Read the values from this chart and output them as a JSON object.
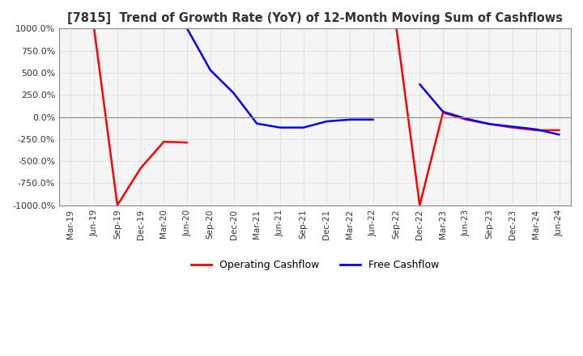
{
  "title": "[7815]  Trend of Growth Rate (YoY) of 12-Month Moving Sum of Cashflows",
  "ylim": [
    -1000,
    1000
  ],
  "yticks": [
    -1000,
    -750,
    -500,
    -250,
    0,
    250,
    500,
    750,
    1000
  ],
  "ytick_labels": [
    "-1000.0%",
    "-750.0%",
    "-500.0%",
    "-250.0%",
    "0.0%",
    "250.0%",
    "500.0%",
    "750.0%",
    "1000.0%"
  ],
  "background_color": "#ffffff",
  "plot_bg_color": "#f5f5f5",
  "grid_color": "#aaaaaa",
  "operating_color": "#ff0000",
  "free_color": "#0000ff",
  "x_labels": [
    "Mar-19",
    "Jun-19",
    "Sep-19",
    "Dec-19",
    "Mar-20",
    "Jun-20",
    "Sep-20",
    "Dec-20",
    "Mar-21",
    "Jun-21",
    "Sep-21",
    "Dec-21",
    "Mar-22",
    "Jun-22",
    "Sep-22",
    "Dec-22",
    "Mar-23",
    "Jun-23",
    "Sep-23",
    "Dec-23",
    "Mar-24",
    "Jun-24"
  ],
  "operating_cashflow": [
    null,
    1000,
    -1000,
    -580,
    -280,
    -290,
    null,
    null,
    null,
    null,
    null,
    null,
    null,
    null,
    1000,
    -1000,
    50,
    -30,
    -80,
    -120,
    -150,
    -150
  ],
  "free_cashflow": [
    null,
    null,
    null,
    null,
    null,
    1000,
    530,
    270,
    -75,
    -120,
    -120,
    -50,
    -30,
    -30,
    null,
    370,
    60,
    -20,
    -80,
    -110,
    -140,
    -200
  ]
}
